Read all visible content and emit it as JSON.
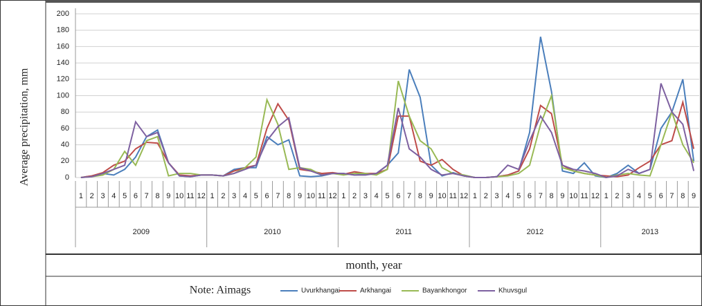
{
  "chart_data": {
    "type": "line",
    "ylabel": "Average  precipitation, mm",
    "xlabel": "month, year",
    "note_label": "Note: Aimags",
    "categories": [
      "1",
      "2",
      "3",
      "4",
      "5",
      "6",
      "7",
      "8",
      "9",
      "10",
      "11",
      "12",
      "1",
      "2",
      "3",
      "4",
      "5",
      "6",
      "7",
      "8",
      "9",
      "10",
      "11",
      "12",
      "1",
      "2",
      "3",
      "4",
      "5",
      "6",
      "7",
      "8",
      "9",
      "10",
      "11",
      "12",
      "1",
      "2",
      "3",
      "4",
      "5",
      "6",
      "7",
      "8",
      "9",
      "10",
      "11",
      "12",
      "1",
      "2",
      "3",
      "4",
      "5",
      "6",
      "7",
      "8",
      "9"
    ],
    "groups": [
      {
        "name": "2009",
        "size": 12
      },
      {
        "name": "2010",
        "size": 12
      },
      {
        "name": "2011",
        "size": 12
      },
      {
        "name": "2012",
        "size": 12
      },
      {
        "name": "2013",
        "size": 9
      }
    ],
    "ylim": [
      0,
      200
    ],
    "yticks": [
      0,
      20,
      40,
      60,
      80,
      100,
      120,
      140,
      160,
      180,
      200
    ],
    "grid": true,
    "series": [
      {
        "name": "Uvurkhangai",
        "color": "#4a7ebb",
        "values": [
          0,
          2,
          5,
          3,
          10,
          25,
          50,
          58,
          18,
          2,
          1,
          3,
          3,
          2,
          10,
          12,
          12,
          50,
          40,
          46,
          2,
          1,
          2,
          5,
          5,
          3,
          4,
          5,
          15,
          30,
          132,
          98,
          15,
          2,
          6,
          2,
          0,
          0,
          1,
          3,
          8,
          55,
          172,
          105,
          8,
          5,
          18,
          2,
          0,
          5,
          15,
          5,
          10,
          60,
          80,
          120,
          20
        ]
      },
      {
        "name": "Arkhangai",
        "color": "#be4b48",
        "values": [
          0,
          2,
          6,
          15,
          20,
          35,
          43,
          42,
          18,
          3,
          2,
          3,
          3,
          2,
          8,
          12,
          15,
          60,
          90,
          70,
          10,
          8,
          5,
          6,
          4,
          7,
          5,
          5,
          10,
          75,
          75,
          20,
          15,
          22,
          10,
          2,
          0,
          0,
          1,
          3,
          8,
          35,
          88,
          78,
          15,
          8,
          5,
          3,
          2,
          1,
          3,
          12,
          20,
          40,
          45,
          92,
          35
        ]
      },
      {
        "name": "Bayankhongor",
        "color": "#98b954",
        "values": [
          0,
          1,
          3,
          10,
          32,
          15,
          45,
          50,
          2,
          5,
          5,
          3,
          3,
          2,
          5,
          12,
          25,
          95,
          65,
          10,
          12,
          10,
          3,
          5,
          3,
          5,
          5,
          3,
          10,
          118,
          75,
          45,
          35,
          12,
          5,
          3,
          0,
          0,
          1,
          2,
          5,
          15,
          65,
          100,
          12,
          8,
          5,
          3,
          0,
          3,
          5,
          3,
          2,
          40,
          80,
          40,
          18
        ]
      },
      {
        "name": "Khuvsgul",
        "color": "#7d60a0",
        "values": [
          0,
          1,
          5,
          10,
          15,
          68,
          50,
          55,
          18,
          2,
          1,
          3,
          3,
          2,
          5,
          10,
          15,
          45,
          62,
          73,
          12,
          8,
          3,
          5,
          5,
          3,
          3,
          5,
          15,
          85,
          35,
          25,
          10,
          3,
          5,
          2,
          0,
          0,
          1,
          15,
          10,
          45,
          75,
          55,
          15,
          10,
          8,
          5,
          0,
          2,
          10,
          5,
          10,
          115,
          80,
          65,
          8
        ]
      }
    ]
  }
}
